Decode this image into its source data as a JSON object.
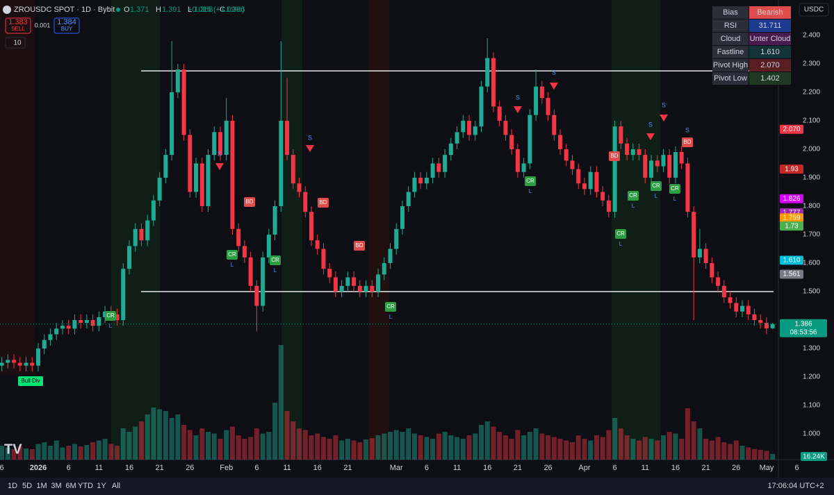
{
  "header": {
    "symbol": "ZROUSDC SPOT · 1D · Bybit",
    "ohlc": [
      {
        "key": "O",
        "value": 1.371
      },
      {
        "key": "H",
        "value": 1.391
      },
      {
        "key": "L",
        "value": 1.368
      },
      {
        "key": "C",
        "value": 1.386
      }
    ],
    "change": "+0.015 (+1.09%)",
    "sell_price": 1.383,
    "sell": "SELL",
    "spread": 0.001,
    "buy_price": 1.384,
    "buy": "BUY",
    "indicator_count": 10,
    "currency": "USDC"
  },
  "info_table": {
    "rows": [
      {
        "label": "Bias",
        "value": "Bearish",
        "color": "#e04b4b"
      },
      {
        "label": "RSI",
        "value": "31.711",
        "color": "#1c3b8f"
      },
      {
        "label": "Cloud",
        "value": "Unter Cloud",
        "color": "#4a1a4e"
      },
      {
        "label": "Fastline",
        "value": "1.610",
        "color": "#123438"
      },
      {
        "label": "Pivot High",
        "value": "2.070",
        "color": "#5a1e22"
      },
      {
        "label": "Pivot Low",
        "value": "1.402",
        "color": "#1e3a22"
      }
    ]
  },
  "signals": {
    "cr": "CR",
    "bd": "BD",
    "s": "S",
    "l": "L",
    "bull_div": "Bull Div"
  },
  "toolbar": {
    "ranges": [
      "1D",
      "5D",
      "1M",
      "3M",
      "6M",
      "YTD",
      "1Y",
      "All"
    ],
    "clock": "17:06:04 UTC+2"
  },
  "chart_data": {
    "type": "candlestick",
    "categories": [
      "6",
      null,
      null,
      null,
      null,
      null,
      "2026",
      null,
      null,
      null,
      null,
      "6",
      null,
      null,
      null,
      null,
      "11",
      null,
      null,
      null,
      null,
      "16",
      null,
      null,
      null,
      null,
      "21",
      null,
      null,
      null,
      null,
      "26",
      null,
      null,
      null,
      null,
      null,
      "Feb",
      null,
      null,
      null,
      null,
      "6",
      null,
      null,
      null,
      null,
      "11",
      null,
      null,
      null,
      null,
      "16",
      null,
      null,
      null,
      null,
      "21",
      null,
      null,
      null,
      null,
      null,
      null,
      null,
      "Mar",
      null,
      null,
      null,
      null,
      "6",
      null,
      null,
      null,
      null,
      "11",
      null,
      null,
      null,
      null,
      "16",
      null,
      null,
      null,
      null,
      "21",
      null,
      null,
      null,
      null,
      "26",
      null,
      null,
      null,
      null,
      null,
      "Apr",
      null,
      null,
      null,
      null,
      "6",
      null,
      null,
      null,
      null,
      "11",
      null,
      null,
      null,
      null,
      "16",
      null,
      null,
      null,
      null,
      "21",
      null,
      null,
      null,
      null,
      "26",
      null,
      null,
      null,
      null,
      "May",
      null,
      null,
      null,
      null,
      "6"
    ],
    "open": [
      1.24,
      1.25,
      1.26,
      1.25,
      1.24,
      1.25,
      1.24,
      1.3,
      1.33,
      1.35,
      1.37,
      1.38,
      1.37,
      1.4,
      1.39,
      1.4,
      1.38,
      1.41,
      1.43,
      1.42,
      1.4,
      1.58,
      1.66,
      1.72,
      1.68,
      1.75,
      1.82,
      1.9,
      1.98,
      2.2,
      2.28,
      2.05,
      1.85,
      1.95,
      1.8,
      1.98,
      2.06,
      1.98,
      2.1,
      1.72,
      1.66,
      1.62,
      1.52,
      1.45,
      1.62,
      1.7,
      1.8,
      2.1,
      1.98,
      1.88,
      1.85,
      1.78,
      1.68,
      1.65,
      1.58,
      1.55,
      1.5,
      1.52,
      1.55,
      1.52,
      1.5,
      1.52,
      1.5,
      1.56,
      1.6,
      1.65,
      1.72,
      1.8,
      1.85,
      1.9,
      1.88,
      1.9,
      1.95,
      1.92,
      1.98,
      2.02,
      2.06,
      2.1,
      2.05,
      2.08,
      2.22,
      2.32,
      2.15,
      2.1,
      2.05,
      2.0,
      1.92,
      1.95,
      2.12,
      2.22,
      2.18,
      2.12,
      2.05,
      2.0,
      1.96,
      1.93,
      1.88,
      1.86,
      1.92,
      1.85,
      1.82,
      1.78,
      2.08,
      2.02,
      1.98,
      2.0,
      1.98,
      1.9,
      1.96,
      1.94,
      1.98,
      1.9,
      1.99,
      1.95,
      1.78,
      1.62,
      1.65,
      1.6,
      1.55,
      1.52,
      1.48,
      1.46,
      1.43,
      1.45,
      1.42,
      1.4,
      1.39,
      1.371,
      null,
      null,
      null,
      null
    ],
    "high": [
      1.27,
      1.28,
      1.28,
      1.27,
      1.27,
      1.27,
      1.32,
      1.35,
      1.37,
      1.39,
      1.4,
      1.4,
      1.42,
      1.42,
      1.42,
      1.42,
      1.43,
      1.45,
      1.45,
      1.44,
      1.6,
      1.68,
      1.74,
      1.74,
      1.77,
      1.84,
      1.92,
      2.0,
      2.38,
      2.3,
      2.3,
      2.07,
      1.97,
      1.97,
      2.0,
      2.08,
      2.08,
      2.18,
      2.12,
      1.74,
      1.68,
      1.64,
      1.54,
      1.64,
      1.72,
      1.82,
      2.38,
      2.25,
      2.0,
      1.9,
      1.87,
      1.8,
      1.7,
      1.67,
      1.6,
      1.57,
      1.54,
      1.57,
      1.57,
      1.54,
      1.54,
      1.54,
      1.58,
      1.62,
      1.67,
      1.74,
      1.82,
      1.87,
      1.92,
      1.92,
      1.92,
      1.97,
      1.97,
      2.0,
      2.04,
      2.08,
      2.12,
      2.12,
      2.1,
      2.24,
      2.39,
      2.34,
      2.17,
      2.12,
      2.07,
      2.02,
      1.97,
      2.14,
      2.28,
      2.24,
      2.2,
      2.14,
      2.07,
      2.02,
      1.98,
      1.95,
      1.9,
      1.94,
      1.94,
      1.87,
      1.84,
      2.1,
      2.1,
      2.04,
      2.02,
      2.02,
      2.0,
      1.98,
      1.98,
      2.0,
      2.0,
      2.01,
      2.01,
      1.97,
      1.8,
      1.72,
      1.67,
      1.62,
      1.57,
      1.54,
      1.5,
      1.48,
      1.47,
      1.47,
      1.44,
      1.42,
      1.41,
      1.391,
      null,
      null,
      null,
      null
    ],
    "low": [
      1.22,
      1.23,
      1.23,
      1.22,
      1.22,
      1.22,
      1.22,
      1.28,
      1.31,
      1.33,
      1.35,
      1.35,
      1.35,
      1.37,
      1.37,
      1.36,
      1.36,
      1.39,
      1.4,
      1.38,
      1.38,
      1.56,
      1.64,
      1.66,
      1.66,
      1.73,
      1.8,
      1.88,
      1.96,
      2.18,
      2.03,
      1.83,
      1.83,
      1.78,
      1.78,
      1.96,
      1.96,
      1.96,
      1.7,
      1.64,
      1.6,
      1.5,
      1.36,
      1.43,
      1.6,
      1.68,
      1.78,
      1.96,
      1.86,
      1.83,
      1.76,
      1.66,
      1.63,
      1.56,
      1.53,
      1.48,
      1.48,
      1.5,
      1.5,
      1.48,
      1.48,
      1.48,
      1.48,
      1.54,
      1.58,
      1.63,
      1.7,
      1.78,
      1.83,
      1.86,
      1.86,
      1.88,
      1.9,
      1.9,
      1.96,
      2.0,
      2.04,
      2.03,
      2.03,
      2.06,
      2.2,
      2.13,
      2.08,
      2.03,
      1.98,
      1.9,
      1.9,
      1.93,
      2.1,
      2.16,
      2.1,
      2.03,
      1.98,
      1.94,
      1.91,
      1.86,
      1.84,
      1.84,
      1.83,
      1.8,
      1.76,
      1.76,
      2.0,
      1.96,
      1.96,
      1.96,
      1.88,
      1.88,
      1.92,
      1.92,
      1.88,
      1.88,
      1.93,
      1.76,
      1.4,
      1.6,
      1.58,
      1.53,
      1.5,
      1.46,
      1.44,
      1.41,
      1.41,
      1.4,
      1.38,
      1.37,
      1.35,
      1.368,
      null,
      null,
      null,
      null
    ],
    "close": [
      1.25,
      1.26,
      1.25,
      1.24,
      1.25,
      1.24,
      1.3,
      1.33,
      1.35,
      1.37,
      1.38,
      1.37,
      1.4,
      1.39,
      1.4,
      1.38,
      1.41,
      1.43,
      1.42,
      1.4,
      1.58,
      1.66,
      1.72,
      1.68,
      1.75,
      1.82,
      1.9,
      1.98,
      2.2,
      2.28,
      2.05,
      1.85,
      1.95,
      1.8,
      1.98,
      2.06,
      1.98,
      2.1,
      1.72,
      1.66,
      1.62,
      1.52,
      1.45,
      1.62,
      1.7,
      1.8,
      2.1,
      1.98,
      1.88,
      1.85,
      1.78,
      1.68,
      1.65,
      1.58,
      1.55,
      1.5,
      1.52,
      1.55,
      1.52,
      1.5,
      1.52,
      1.5,
      1.56,
      1.6,
      1.65,
      1.72,
      1.8,
      1.85,
      1.9,
      1.88,
      1.9,
      1.95,
      1.92,
      1.98,
      2.02,
      2.06,
      2.1,
      2.05,
      2.08,
      2.22,
      2.32,
      2.15,
      2.1,
      2.05,
      2.0,
      1.92,
      1.95,
      2.12,
      2.22,
      2.18,
      2.12,
      2.05,
      2.0,
      1.96,
      1.93,
      1.88,
      1.86,
      1.92,
      1.85,
      1.82,
      1.78,
      2.08,
      2.02,
      1.98,
      2.0,
      1.98,
      1.9,
      1.96,
      1.94,
      1.98,
      1.9,
      1.99,
      1.95,
      1.78,
      1.62,
      1.65,
      1.6,
      1.55,
      1.52,
      1.48,
      1.46,
      1.43,
      1.45,
      1.42,
      1.4,
      1.39,
      1.371,
      1.386,
      null,
      null,
      null,
      null
    ],
    "up_color": "#22ab94",
    "down_color": "#f23645",
    "ylim": [
      0.91,
      2.524
    ],
    "yticks": [
      {
        "value": 2.4,
        "label": "2.400"
      },
      {
        "value": 2.3,
        "label": "2.300"
      },
      {
        "value": 2.2,
        "label": "2.200"
      },
      {
        "value": 2.1,
        "label": "2.100"
      },
      {
        "value": 2.0,
        "label": "2.000"
      },
      {
        "value": 1.9,
        "label": "1.900"
      },
      {
        "value": 1.8,
        "label": "1.800"
      },
      {
        "value": 1.7,
        "label": "1.700"
      },
      {
        "value": 1.6,
        "label": "1.600"
      },
      {
        "value": 1.5,
        "label": "1.500"
      },
      {
        "value": 1.3,
        "label": "1.300"
      },
      {
        "value": 1.2,
        "label": "1.200"
      },
      {
        "value": 1.1,
        "label": "1.100"
      },
      {
        "value": 1.0,
        "label": "1.000"
      }
    ],
    "grid": false,
    "levels": [
      2.275,
      1.5
    ],
    "price_tags": [
      {
        "value": 2.07,
        "label": "2.070",
        "color": "#f23645"
      },
      {
        "value": 1.93,
        "color": "#c62828"
      },
      {
        "value": 1.826,
        "color": "#d500f9"
      },
      {
        "value": 1.777,
        "color": "#9c27b0"
      },
      {
        "value": 1.759,
        "color": "#ff9800"
      },
      {
        "value": 1.73,
        "color": "#4caf50"
      },
      {
        "value": 1.61,
        "label": "1.610",
        "color": "#00bcd4"
      },
      {
        "value": 1.561,
        "color": "#787b86"
      }
    ],
    "last_price": {
      "value": 1.386,
      "countdown": "08:53:56",
      "color": "#089981"
    },
    "volume": {
      "values": [
        40,
        35,
        30,
        38,
        32,
        30,
        45,
        50,
        40,
        55,
        35,
        40,
        45,
        38,
        42,
        50,
        55,
        60,
        45,
        40,
        90,
        80,
        95,
        110,
        130,
        150,
        145,
        140,
        120,
        130,
        100,
        85,
        70,
        90,
        80,
        75,
        60,
        85,
        95,
        70,
        60,
        65,
        90,
        75,
        80,
        164,
        330,
        140,
        110,
        90,
        85,
        70,
        75,
        65,
        60,
        70,
        55,
        60,
        55,
        50,
        58,
        62,
        70,
        75,
        80,
        85,
        80,
        90,
        75,
        70,
        65,
        60,
        75,
        80,
        70,
        65,
        60,
        70,
        75,
        100,
        110,
        95,
        80,
        70,
        60,
        85,
        70,
        80,
        90,
        75,
        70,
        65,
        60,
        55,
        50,
        70,
        60,
        55,
        70,
        65,
        85,
        120,
        90,
        70,
        60,
        55,
        65,
        60,
        55,
        70,
        80,
        75,
        60,
        148,
        110,
        90,
        60,
        55,
        65,
        50,
        45,
        55,
        40,
        35,
        30,
        28,
        25,
        16.24,
        null,
        null,
        null,
        null
      ],
      "ylim": [
        0,
        340
      ],
      "last_label": "16.24K"
    }
  }
}
